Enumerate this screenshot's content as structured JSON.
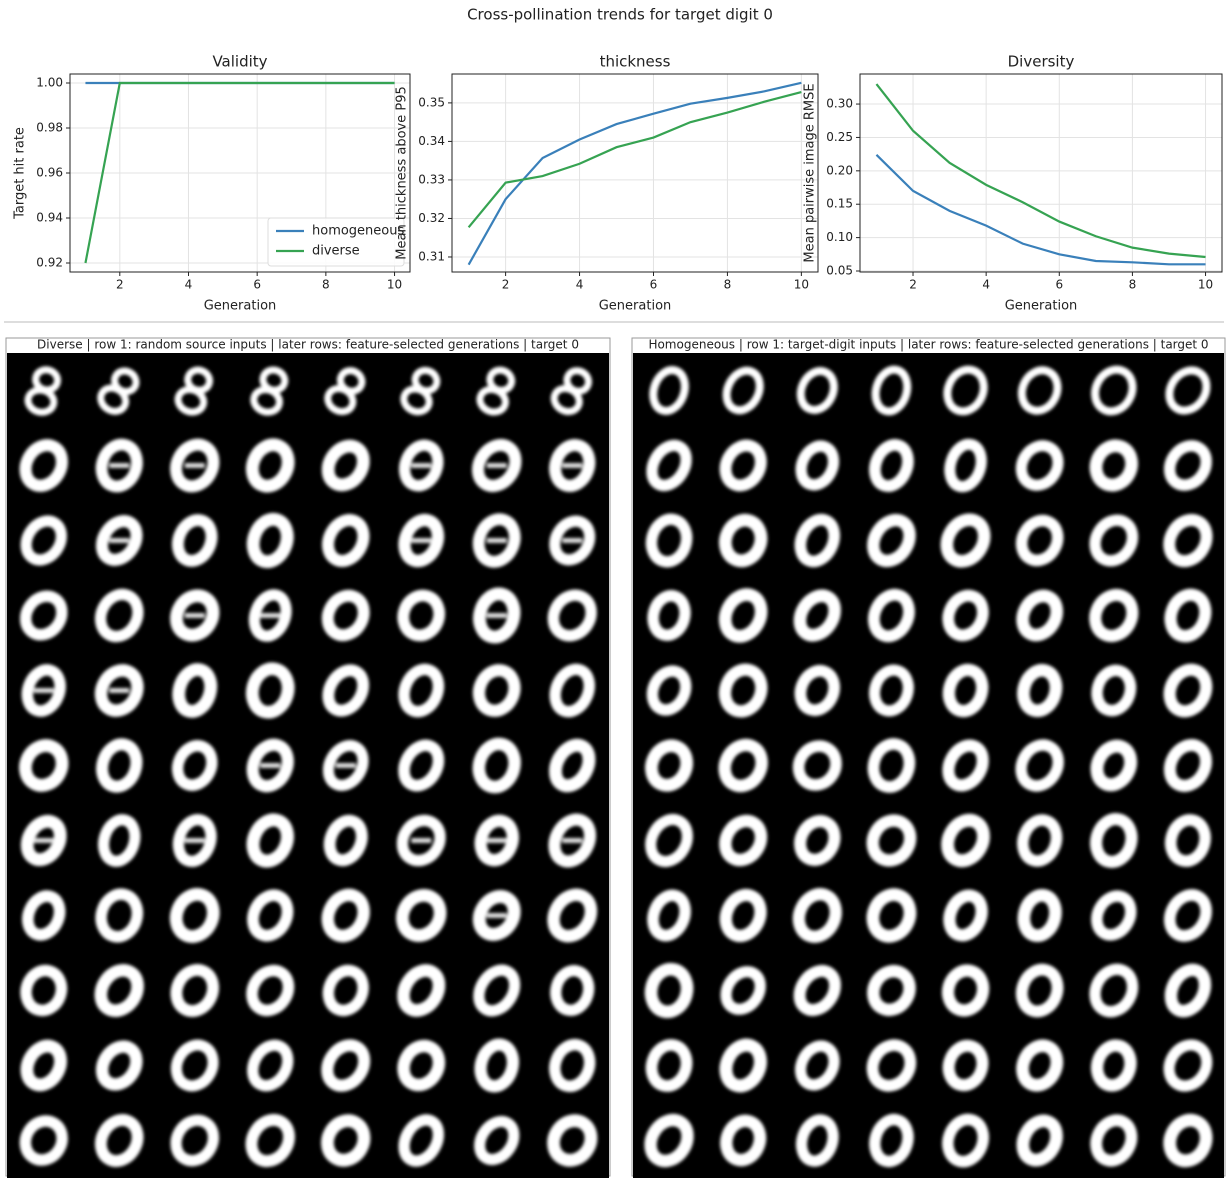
{
  "title": "Cross-pollination trends for target digit 0",
  "chart_data": [
    {
      "type": "line",
      "title": "Validity",
      "x_label": "Generation",
      "y_label": "Target hit rate",
      "x": [
        1,
        2,
        3,
        4,
        5,
        6,
        7,
        8,
        9,
        10
      ],
      "series": [
        {
          "name": "homogeneous",
          "color": "#3a80ba",
          "values": [
            1.0,
            1.0,
            1.0,
            1.0,
            1.0,
            1.0,
            1.0,
            1.0,
            1.0,
            1.0
          ]
        },
        {
          "name": "diverse",
          "color": "#36a352",
          "values": [
            0.92,
            1.0,
            1.0,
            1.0,
            1.0,
            1.0,
            1.0,
            1.0,
            1.0,
            1.0
          ]
        }
      ],
      "xlim": [
        0.55,
        10.45
      ],
      "xticks": [
        2,
        4,
        6,
        8,
        10
      ],
      "ylim": [
        0.916,
        1.004
      ],
      "yticks": [
        0.92,
        0.94,
        0.96,
        0.98,
        {
          "value": 1.0,
          "label": "1.00"
        }
      ],
      "grid": true,
      "legend": "lower right"
    },
    {
      "type": "line",
      "title": "thickness",
      "x_label": "Generation",
      "y_label": "Mean thickness above P95",
      "x": [
        1,
        2,
        3,
        4,
        5,
        6,
        7,
        8,
        9,
        10
      ],
      "series": [
        {
          "name": "homogeneous",
          "color": "#3a80ba",
          "values": [
            0.308,
            0.325,
            0.3357,
            0.3405,
            0.3445,
            0.3472,
            0.3498,
            0.3513,
            0.353,
            0.3552
          ]
        },
        {
          "name": "diverse",
          "color": "#36a352",
          "values": [
            0.3177,
            0.3293,
            0.331,
            0.3342,
            0.3385,
            0.341,
            0.345,
            0.3475,
            0.3503,
            0.3528
          ]
        }
      ],
      "xlim": [
        0.55,
        10.45
      ],
      "xticks": [
        2,
        4,
        6,
        8,
        10
      ],
      "ylim": [
        0.3061,
        0.3575
      ],
      "yticks": [
        0.31,
        0.32,
        0.33,
        0.34,
        0.35
      ],
      "grid": true
    },
    {
      "type": "line",
      "title": "Diversity",
      "x_label": "Generation",
      "y_label": "Mean pairwise image RMSE",
      "x": [
        1,
        2,
        3,
        4,
        5,
        6,
        7,
        8,
        9,
        10
      ],
      "series": [
        {
          "name": "homogeneous",
          "color": "#3a80ba",
          "values": [
            0.224,
            0.17,
            0.14,
            0.118,
            0.091,
            0.075,
            0.065,
            0.063,
            0.06,
            0.06
          ]
        },
        {
          "name": "diverse",
          "color": "#36a352",
          "values": [
            0.33,
            0.26,
            0.212,
            0.179,
            0.153,
            0.124,
            0.102,
            0.085,
            0.076,
            0.071
          ]
        }
      ],
      "xlim": [
        0.55,
        10.45
      ],
      "xticks": [
        2,
        4,
        6,
        8,
        10
      ],
      "ylim": [
        0.0485,
        0.345
      ],
      "yticks": [
        0.05,
        {
          "value": 0.1,
          "label": "0.10"
        },
        0.15,
        {
          "value": 0.2,
          "label": "0.20"
        },
        0.25,
        {
          "value": 0.3,
          "label": "0.30"
        }
      ],
      "grid": true
    }
  ],
  "panels": [
    {
      "caption": "Diverse | row 1: random source inputs | later rows: feature-selected generations | target 0"
    },
    {
      "caption": "Homogeneous | row 1: target-digit inputs | later rows: feature-selected generations | target 0"
    }
  ]
}
